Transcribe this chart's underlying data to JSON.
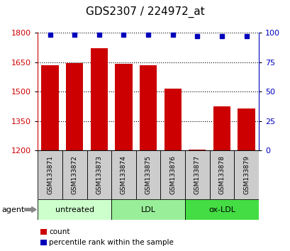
{
  "title": "GDS2307 / 224972_at",
  "samples": [
    "GSM133871",
    "GSM133872",
    "GSM133873",
    "GSM133874",
    "GSM133875",
    "GSM133876",
    "GSM133877",
    "GSM133878",
    "GSM133879"
  ],
  "counts": [
    1635,
    1645,
    1720,
    1640,
    1635,
    1515,
    1205,
    1425,
    1415
  ],
  "percentiles": [
    98,
    98,
    98,
    98,
    98,
    98,
    97,
    97,
    97
  ],
  "ylim": [
    1200,
    1800
  ],
  "yticks_left": [
    1200,
    1350,
    1500,
    1650,
    1800
  ],
  "yticks_right": [
    0,
    25,
    50,
    75,
    100
  ],
  "bar_color": "#cc0000",
  "dot_color": "#0000bb",
  "groups": [
    {
      "label": "untreated",
      "start": 0,
      "end": 3,
      "color": "#ccffcc"
    },
    {
      "label": "LDL",
      "start": 3,
      "end": 6,
      "color": "#99ee99"
    },
    {
      "label": "ox-LDL",
      "start": 6,
      "end": 9,
      "color": "#44dd44"
    }
  ],
  "agent_label": "agent",
  "legend_count_label": "count",
  "legend_pct_label": "percentile rank within the sample",
  "bg_sample_strip": "#cccccc",
  "title_fontsize": 11,
  "tick_fontsize": 8,
  "bar_width": 0.7,
  "figsize": [
    4.1,
    3.54
  ],
  "dpi": 100
}
